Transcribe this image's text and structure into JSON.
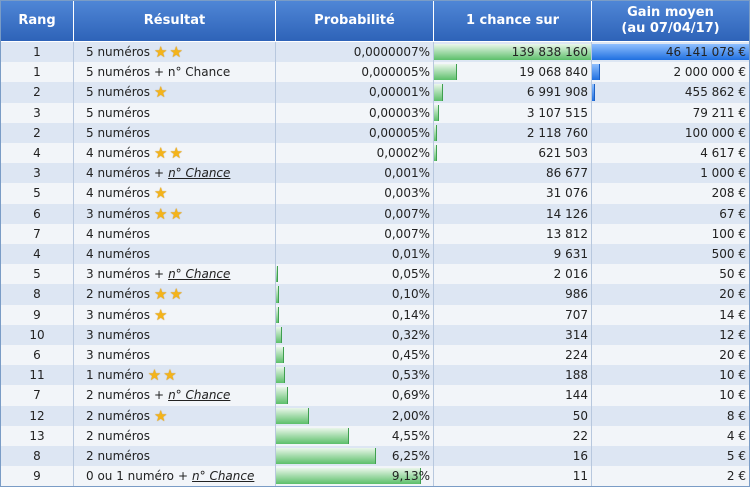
{
  "header": {
    "rang": "Rang",
    "resultat": "Résultat",
    "probabilite": "Probabilité",
    "chance_sur": "1 chance sur",
    "gain_line1": "Gain moyen",
    "gain_line2": "(au 07/04/17)"
  },
  "colors": {
    "header": "#2e63b8",
    "prob_bar": "#5cbf6a",
    "gain_bar": "#1f70e0",
    "star": "#f4b41a"
  },
  "rows": [
    {
      "rang": "1",
      "main": "5 numéros",
      "plus": "",
      "chance": "",
      "stars": 2,
      "prob": "0,0000007%",
      "prob_val": 7e-07,
      "chance_sur": "139 838 160",
      "chance_val": 139838160,
      "gain": "46 141 078 €",
      "gain_val": 46141078
    },
    {
      "rang": "1",
      "main": "5 numéros",
      "plus": "+ n° Chance",
      "chance": "",
      "stars": 0,
      "prob": "0,000005%",
      "prob_val": 5e-06,
      "chance_sur": "19 068 840",
      "chance_val": 19068840,
      "gain": "2 000 000 €",
      "gain_val": 2000000
    },
    {
      "rang": "2",
      "main": "5 numéros",
      "plus": "",
      "chance": "",
      "stars": 1,
      "prob": "0,00001%",
      "prob_val": 1e-05,
      "chance_sur": "6 991 908",
      "chance_val": 6991908,
      "gain": "455 862 €",
      "gain_val": 455862
    },
    {
      "rang": "3",
      "main": "5 numéros",
      "plus": "",
      "chance": "",
      "stars": 0,
      "prob": "0,00003%",
      "prob_val": 3e-05,
      "chance_sur": "3 107 515",
      "chance_val": 3107515,
      "gain": "79 211 €",
      "gain_val": 79211
    },
    {
      "rang": "2",
      "main": "5 numéros",
      "plus": "",
      "chance": "",
      "stars": 0,
      "prob": "0,00005%",
      "prob_val": 5e-05,
      "chance_sur": "2 118 760",
      "chance_val": 2118760,
      "gain": "100 000 €",
      "gain_val": 100000
    },
    {
      "rang": "4",
      "main": "4 numéros",
      "plus": "",
      "chance": "",
      "stars": 2,
      "prob": "0,0002%",
      "prob_val": 0.0002,
      "chance_sur": "621 503",
      "chance_val": 621503,
      "gain": "4 617 €",
      "gain_val": 4617
    },
    {
      "rang": "3",
      "main": "4 numéros",
      "plus": "+",
      "chance": "n° Chance",
      "stars": 0,
      "prob": "0,001%",
      "prob_val": 0.001,
      "chance_sur": "86 677",
      "chance_val": 86677,
      "gain": "1 000 €",
      "gain_val": 1000
    },
    {
      "rang": "5",
      "main": "4 numéros",
      "plus": "",
      "chance": "",
      "stars": 1,
      "prob": "0,003%",
      "prob_val": 0.003,
      "chance_sur": "31 076",
      "chance_val": 31076,
      "gain": "208 €",
      "gain_val": 208
    },
    {
      "rang": "6",
      "main": "3 numéros",
      "plus": "",
      "chance": "",
      "stars": 2,
      "prob": "0,007%",
      "prob_val": 0.007,
      "chance_sur": "14 126",
      "chance_val": 14126,
      "gain": "67 €",
      "gain_val": 67
    },
    {
      "rang": "7",
      "main": "4 numéros",
      "plus": "",
      "chance": "",
      "stars": 0,
      "prob": "0,007%",
      "prob_val": 0.007,
      "chance_sur": "13 812",
      "chance_val": 13812,
      "gain": "100 €",
      "gain_val": 100
    },
    {
      "rang": "4",
      "main": "4 numéros",
      "plus": "",
      "chance": "",
      "stars": 0,
      "prob": "0,01%",
      "prob_val": 0.01,
      "chance_sur": "9 631",
      "chance_val": 9631,
      "gain": "500 €",
      "gain_val": 500
    },
    {
      "rang": "5",
      "main": "3 numéros",
      "plus": "+",
      "chance": "n° Chance",
      "stars": 0,
      "prob": "0,05%",
      "prob_val": 0.05,
      "chance_sur": "2 016",
      "chance_val": 2016,
      "gain": "50 €",
      "gain_val": 50
    },
    {
      "rang": "8",
      "main": "2 numéros",
      "plus": "",
      "chance": "",
      "stars": 2,
      "prob": "0,10%",
      "prob_val": 0.1,
      "chance_sur": "986",
      "chance_val": 986,
      "gain": "20 €",
      "gain_val": 20
    },
    {
      "rang": "9",
      "main": "3 numéros",
      "plus": "",
      "chance": "",
      "stars": 1,
      "prob": "0,14%",
      "prob_val": 0.14,
      "chance_sur": "707",
      "chance_val": 707,
      "gain": "14 €",
      "gain_val": 14
    },
    {
      "rang": "10",
      "main": "3 numéros",
      "plus": "",
      "chance": "",
      "stars": 0,
      "prob": "0,32%",
      "prob_val": 0.32,
      "chance_sur": "314",
      "chance_val": 314,
      "gain": "12 €",
      "gain_val": 12
    },
    {
      "rang": "6",
      "main": "3 numéros",
      "plus": "",
      "chance": "",
      "stars": 0,
      "prob": "0,45%",
      "prob_val": 0.45,
      "chance_sur": "224",
      "chance_val": 224,
      "gain": "20 €",
      "gain_val": 20
    },
    {
      "rang": "11",
      "main": "1 numéro",
      "plus": "",
      "chance": "",
      "stars": 2,
      "prob": "0,53%",
      "prob_val": 0.53,
      "chance_sur": "188",
      "chance_val": 188,
      "gain": "10 €",
      "gain_val": 10
    },
    {
      "rang": "7",
      "main": "2 numéros",
      "plus": "+",
      "chance": "n° Chance",
      "stars": 0,
      "prob": "0,69%",
      "prob_val": 0.69,
      "chance_sur": "144",
      "chance_val": 144,
      "gain": "10 €",
      "gain_val": 10
    },
    {
      "rang": "12",
      "main": "2 numéros",
      "plus": "",
      "chance": "",
      "stars": 1,
      "prob": "2,00%",
      "prob_val": 2.0,
      "chance_sur": "50",
      "chance_val": 50,
      "gain": "8 €",
      "gain_val": 8
    },
    {
      "rang": "13",
      "main": "2 numéros",
      "plus": "",
      "chance": "",
      "stars": 0,
      "prob": "4,55%",
      "prob_val": 4.55,
      "chance_sur": "22",
      "chance_val": 22,
      "gain": "4 €",
      "gain_val": 4
    },
    {
      "rang": "8",
      "main": "2 numéros",
      "plus": "",
      "chance": "",
      "stars": 0,
      "prob": "6,25%",
      "prob_val": 6.25,
      "chance_sur": "16",
      "chance_val": 16,
      "gain": "5 €",
      "gain_val": 5
    },
    {
      "rang": "9",
      "main": "0 ou 1 numéro",
      "plus": "+",
      "chance": "n° Chance",
      "stars": 0,
      "prob": "9,13%",
      "prob_val": 9.13,
      "chance_sur": "11",
      "chance_val": 11,
      "gain": "2 €",
      "gain_val": 2
    }
  ]
}
